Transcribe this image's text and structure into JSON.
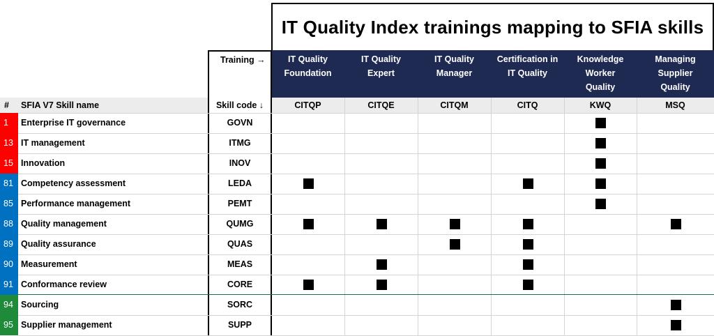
{
  "title": "IT Quality Index trainings mapping to SFIA skills",
  "training_label": "Training →",
  "skill_code_label": "Skill code ↓",
  "num_header": "#",
  "skill_name_header": "SFIA V7 Skill name",
  "trainings": [
    {
      "name_lines": [
        "IT Quality",
        "Foundation"
      ],
      "code": "CITQP"
    },
    {
      "name_lines": [
        "IT Quality",
        "Expert"
      ],
      "code": "CITQE"
    },
    {
      "name_lines": [
        "IT Quality",
        "Manager"
      ],
      "code": "CITQM"
    },
    {
      "name_lines": [
        "Certification in",
        "IT Quality"
      ],
      "code": "CITQ"
    },
    {
      "name_lines": [
        "Knowledge",
        "Worker",
        "Quality"
      ],
      "code": "KWQ"
    },
    {
      "name_lines": [
        "Managing",
        "Supplier",
        "Quality"
      ],
      "code": "MSQ"
    }
  ],
  "colors": {
    "red": "#ff0000",
    "blue": "#0070c0",
    "green": "#1f8a3a",
    "header_navy": "#1f2a52",
    "divider_green": "#1e6b4a"
  },
  "rows": [
    {
      "num": "1",
      "color": "red",
      "name": "Enterprise IT governance",
      "code": "GOVN",
      "marks": [
        0,
        0,
        0,
        0,
        1,
        0
      ]
    },
    {
      "num": "13",
      "color": "red",
      "name": "IT management",
      "code": "ITMG",
      "marks": [
        0,
        0,
        0,
        0,
        1,
        0
      ]
    },
    {
      "num": "15",
      "color": "red",
      "name": "Innovation",
      "code": "INOV",
      "marks": [
        0,
        0,
        0,
        0,
        1,
        0
      ]
    },
    {
      "num": "81",
      "color": "blue",
      "name": "Competency assessment",
      "code": "LEDA",
      "marks": [
        1,
        0,
        0,
        1,
        1,
        0
      ]
    },
    {
      "num": "85",
      "color": "blue",
      "name": "Performance management",
      "code": "PEMT",
      "marks": [
        0,
        0,
        0,
        0,
        1,
        0
      ]
    },
    {
      "num": "88",
      "color": "blue",
      "name": "Quality management",
      "code": "QUMG",
      "marks": [
        1,
        1,
        1,
        1,
        0,
        1
      ]
    },
    {
      "num": "89",
      "color": "blue",
      "name": "Quality assurance",
      "code": "QUAS",
      "marks": [
        0,
        0,
        1,
        1,
        0,
        0
      ]
    },
    {
      "num": "90",
      "color": "blue",
      "name": "Measurement",
      "code": "MEAS",
      "marks": [
        0,
        1,
        0,
        1,
        0,
        0
      ]
    },
    {
      "num": "91",
      "color": "blue",
      "name": "Conformance review",
      "code": "CORE",
      "marks": [
        1,
        1,
        0,
        1,
        0,
        0
      ]
    },
    {
      "num": "94",
      "color": "green",
      "name": "Sourcing",
      "code": "SORC",
      "marks": [
        0,
        0,
        0,
        0,
        0,
        1
      ]
    },
    {
      "num": "95",
      "color": "green",
      "name": "Supplier management",
      "code": "SUPP",
      "marks": [
        0,
        0,
        0,
        0,
        0,
        1
      ]
    }
  ]
}
